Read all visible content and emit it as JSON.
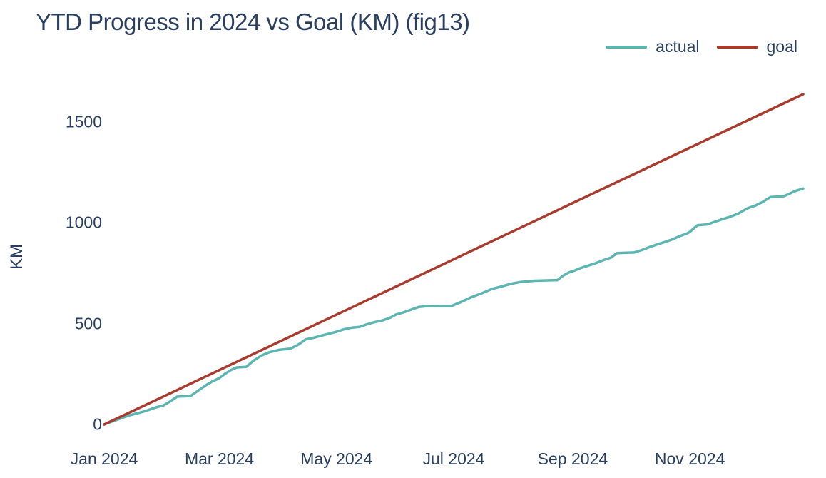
{
  "page": {
    "background_color": "#ffffff",
    "text_color": "#2a3f5f"
  },
  "chart_data": {
    "type": "line",
    "title": "YTD Progress in 2024 vs Goal (KM) (fig13)",
    "xlabel": "",
    "ylabel": "KM",
    "x_unit": "day_of_year_2024",
    "x_range": [
      0,
      364
    ],
    "y_range": [
      0,
      1650
    ],
    "grid": false,
    "axis_lines": false,
    "legend_position": "top-right",
    "x_ticks": [
      {
        "day": 0,
        "label": "Jan 2024"
      },
      {
        "day": 60,
        "label": "Mar 2024"
      },
      {
        "day": 121,
        "label": "May 2024"
      },
      {
        "day": 182,
        "label": "Jul 2024"
      },
      {
        "day": 244,
        "label": "Sep 2024"
      },
      {
        "day": 305,
        "label": "Nov 2024"
      }
    ],
    "y_ticks": [
      0,
      500,
      1000,
      1500
    ],
    "series": [
      {
        "name": "actual",
        "color": "#5cb5b0",
        "final_value_km": 1170,
        "points": [
          [
            0,
            0
          ],
          [
            4,
            14
          ],
          [
            8,
            28
          ],
          [
            13,
            45
          ],
          [
            17,
            55
          ],
          [
            21,
            65
          ],
          [
            24,
            75
          ],
          [
            27,
            85
          ],
          [
            31,
            95
          ],
          [
            34,
            112
          ],
          [
            38,
            138
          ],
          [
            45,
            141
          ],
          [
            49,
            168
          ],
          [
            53,
            195
          ],
          [
            56,
            212
          ],
          [
            60,
            230
          ],
          [
            63,
            252
          ],
          [
            66,
            270
          ],
          [
            69,
            283
          ],
          [
            74,
            286
          ],
          [
            78,
            318
          ],
          [
            82,
            342
          ],
          [
            86,
            358
          ],
          [
            91,
            370
          ],
          [
            97,
            376
          ],
          [
            101,
            395
          ],
          [
            105,
            422
          ],
          [
            109,
            430
          ],
          [
            113,
            440
          ],
          [
            117,
            450
          ],
          [
            121,
            460
          ],
          [
            125,
            472
          ],
          [
            129,
            480
          ],
          [
            133,
            484
          ],
          [
            137,
            497
          ],
          [
            141,
            508
          ],
          [
            145,
            516
          ],
          [
            149,
            530
          ],
          [
            152,
            545
          ],
          [
            156,
            556
          ],
          [
            160,
            570
          ],
          [
            164,
            583
          ],
          [
            168,
            587
          ],
          [
            181,
            588
          ],
          [
            186,
            608
          ],
          [
            191,
            630
          ],
          [
            196,
            648
          ],
          [
            202,
            672
          ],
          [
            206,
            682
          ],
          [
            209,
            690
          ],
          [
            213,
            700
          ],
          [
            217,
            707
          ],
          [
            224,
            713
          ],
          [
            236,
            716
          ],
          [
            239,
            738
          ],
          [
            242,
            754
          ],
          [
            244,
            760
          ],
          [
            248,
            775
          ],
          [
            252,
            788
          ],
          [
            256,
            800
          ],
          [
            260,
            815
          ],
          [
            264,
            828
          ],
          [
            267,
            850
          ],
          [
            276,
            853
          ],
          [
            280,
            865
          ],
          [
            284,
            880
          ],
          [
            288,
            893
          ],
          [
            292,
            905
          ],
          [
            296,
            918
          ],
          [
            300,
            935
          ],
          [
            303,
            945
          ],
          [
            305,
            955
          ],
          [
            307,
            972
          ],
          [
            309,
            988
          ],
          [
            314,
            992
          ],
          [
            318,
            1005
          ],
          [
            322,
            1018
          ],
          [
            326,
            1030
          ],
          [
            330,
            1045
          ],
          [
            335,
            1072
          ],
          [
            339,
            1085
          ],
          [
            343,
            1104
          ],
          [
            347,
            1128
          ],
          [
            354,
            1132
          ],
          [
            357,
            1145
          ],
          [
            360,
            1158
          ],
          [
            364,
            1170
          ]
        ]
      },
      {
        "name": "goal",
        "color": "#a93a2e",
        "final_value_km": 1638,
        "points": [
          [
            0,
            0
          ],
          [
            364,
            1638
          ]
        ]
      }
    ]
  }
}
